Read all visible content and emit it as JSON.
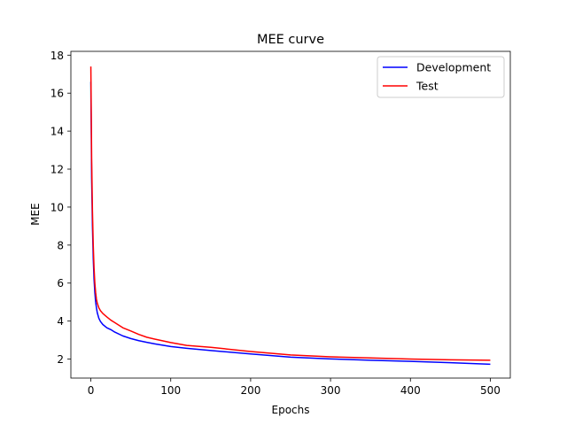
{
  "chart_data": {
    "type": "line",
    "title": "MEE curve",
    "xlabel": "Epochs",
    "ylabel": "MEE",
    "xlim": [
      -25,
      525
    ],
    "ylim": [
      1.0,
      18.2
    ],
    "xticks": [
      0,
      100,
      200,
      300,
      400,
      500
    ],
    "yticks": [
      2,
      4,
      6,
      8,
      10,
      12,
      14,
      16,
      18
    ],
    "grid": false,
    "legend_position": "top-right",
    "series": [
      {
        "name": "Development",
        "color": "#0000ff",
        "x": [
          0,
          1,
          2,
          3,
          4,
          5,
          6,
          7,
          8,
          10,
          12,
          15,
          20,
          25,
          30,
          40,
          50,
          60,
          70,
          80,
          100,
          120,
          150,
          200,
          250,
          300,
          350,
          400,
          450,
          500
        ],
        "y": [
          16.6,
          11.5,
          9.0,
          7.3,
          6.2,
          5.5,
          5.0,
          4.7,
          4.45,
          4.15,
          3.98,
          3.82,
          3.65,
          3.55,
          3.42,
          3.22,
          3.08,
          2.97,
          2.88,
          2.8,
          2.66,
          2.57,
          2.45,
          2.27,
          2.1,
          2.01,
          1.94,
          1.88,
          1.81,
          1.73
        ]
      },
      {
        "name": "Test",
        "color": "#ff0000",
        "x": [
          0,
          1,
          2,
          3,
          4,
          5,
          6,
          7,
          8,
          10,
          12,
          15,
          20,
          25,
          30,
          40,
          50,
          60,
          70,
          80,
          100,
          120,
          150,
          200,
          250,
          300,
          350,
          400,
          450,
          500
        ],
        "y": [
          17.4,
          12.5,
          9.8,
          8.0,
          6.8,
          6.0,
          5.5,
          5.15,
          4.95,
          4.7,
          4.55,
          4.4,
          4.22,
          4.05,
          3.92,
          3.65,
          3.48,
          3.3,
          3.15,
          3.05,
          2.87,
          2.72,
          2.62,
          2.4,
          2.22,
          2.12,
          2.06,
          2.0,
          1.96,
          1.94
        ]
      }
    ]
  }
}
